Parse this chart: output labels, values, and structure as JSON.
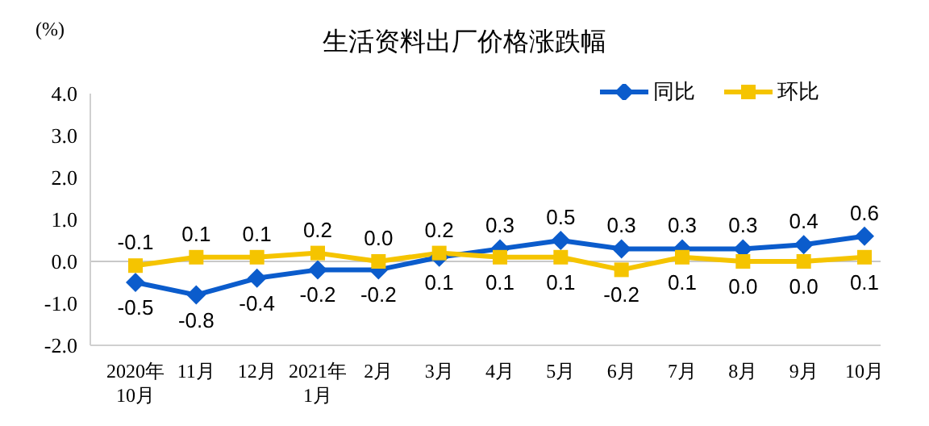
{
  "chart_data": {
    "type": "line",
    "title": "生活资料出厂价格涨跌幅",
    "ylabel": "(%)",
    "categories": [
      "2020年\n10月",
      "11月",
      "12月",
      "2021年\n1月",
      "2月",
      "3月",
      "4月",
      "5月",
      "6月",
      "7月",
      "8月",
      "9月",
      "10月"
    ],
    "series": [
      {
        "name": "同比",
        "color": "#0b5ccc",
        "marker": "diamond",
        "values": [
          -0.5,
          -0.8,
          -0.4,
          -0.2,
          -0.2,
          0.1,
          0.3,
          0.5,
          0.3,
          0.3,
          0.3,
          0.4,
          0.6
        ],
        "value_labels": [
          "-0.5",
          "-0.8",
          "-0.4",
          "-0.2",
          "-0.2",
          "0.1",
          "0.3",
          "0.5",
          "0.3",
          "0.3",
          "0.3",
          "0.4",
          "0.6"
        ]
      },
      {
        "name": "环比",
        "color": "#f5c400",
        "marker": "square",
        "values": [
          -0.1,
          0.1,
          0.1,
          0.2,
          0.0,
          0.2,
          0.1,
          0.1,
          -0.2,
          0.1,
          0.0,
          0.0,
          0.1
        ],
        "value_labels": [
          "-0.1",
          "0.1",
          "0.1",
          "0.2",
          "0.0",
          "0.2",
          "0.1",
          "0.1",
          "-0.2",
          "0.1",
          "0.0",
          "0.0",
          "0.1"
        ]
      }
    ],
    "ylim": [
      -2,
      4
    ],
    "yticks": [
      {
        "value": -2,
        "label": "-2.0"
      },
      {
        "value": -1,
        "label": "-1.0"
      },
      {
        "value": 0,
        "label": "0.0"
      },
      {
        "value": 1,
        "label": "1.0"
      },
      {
        "value": 2,
        "label": "2.0"
      },
      {
        "value": 3,
        "label": "3.0"
      },
      {
        "value": 4,
        "label": "4.0"
      }
    ],
    "ref_lines": [
      {
        "axis": "y",
        "value": 0,
        "color": "#c8c8c8"
      }
    ],
    "legend": "top right",
    "grid": false
  }
}
